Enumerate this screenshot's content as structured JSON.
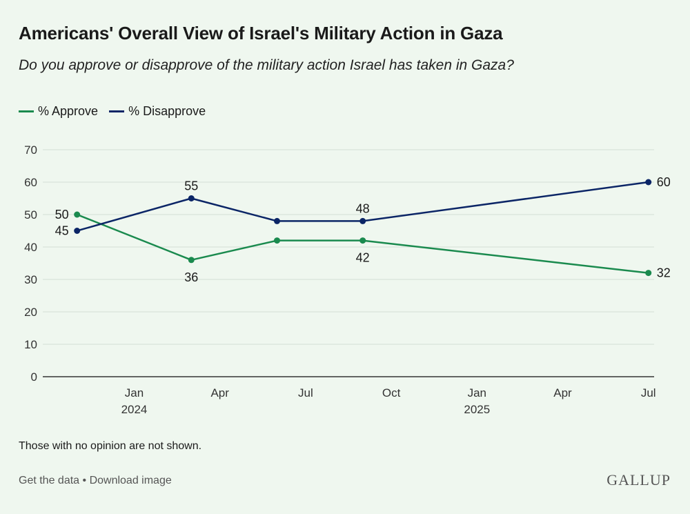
{
  "header": {
    "title": "Americans' Overall View of Israel's Military Action in Gaza",
    "subtitle": "Do you approve or disapprove of the military action Israel has taken in Gaza?"
  },
  "legend": {
    "approve": {
      "label": "% Approve",
      "color": "#1a8a4e"
    },
    "disapprove": {
      "label": "% Disapprove",
      "color": "#0b2566"
    }
  },
  "chart_data": {
    "type": "line",
    "title": "Americans' Overall View of Israel's Military Action in Gaza",
    "x": [
      "2023-11",
      "2024-03",
      "2024-06",
      "2024-09",
      "2025-07"
    ],
    "x_tick_labels": [
      {
        "date": "2024-01",
        "line1": "Jan",
        "line2": "2024"
      },
      {
        "date": "2024-04",
        "line1": "Apr",
        "line2": ""
      },
      {
        "date": "2024-07",
        "line1": "Jul",
        "line2": ""
      },
      {
        "date": "2024-10",
        "line1": "Oct",
        "line2": ""
      },
      {
        "date": "2025-01",
        "line1": "Jan",
        "line2": "2025"
      },
      {
        "date": "2025-04",
        "line1": "Apr",
        "line2": ""
      },
      {
        "date": "2025-07",
        "line1": "Jul",
        "line2": ""
      }
    ],
    "series": [
      {
        "name": "% Approve",
        "values": [
          50,
          36,
          42,
          42,
          32
        ],
        "labels": [
          "50",
          "36",
          "",
          "42",
          "32"
        ]
      },
      {
        "name": "% Disapprove",
        "values": [
          45,
          55,
          48,
          48,
          60
        ],
        "labels": [
          "45",
          "55",
          "",
          "48",
          "60"
        ]
      }
    ],
    "xlabel": "",
    "ylabel": "",
    "ylim": [
      0,
      70
    ],
    "y_ticks": [
      0,
      10,
      20,
      30,
      40,
      50,
      60,
      70
    ],
    "grid": true,
    "legend": "top-left"
  },
  "footer": {
    "note": "Those with no opinion are not shown.",
    "get_data": "Get the data",
    "separator": " • ",
    "download": "Download image",
    "brand": "GALLUP"
  }
}
